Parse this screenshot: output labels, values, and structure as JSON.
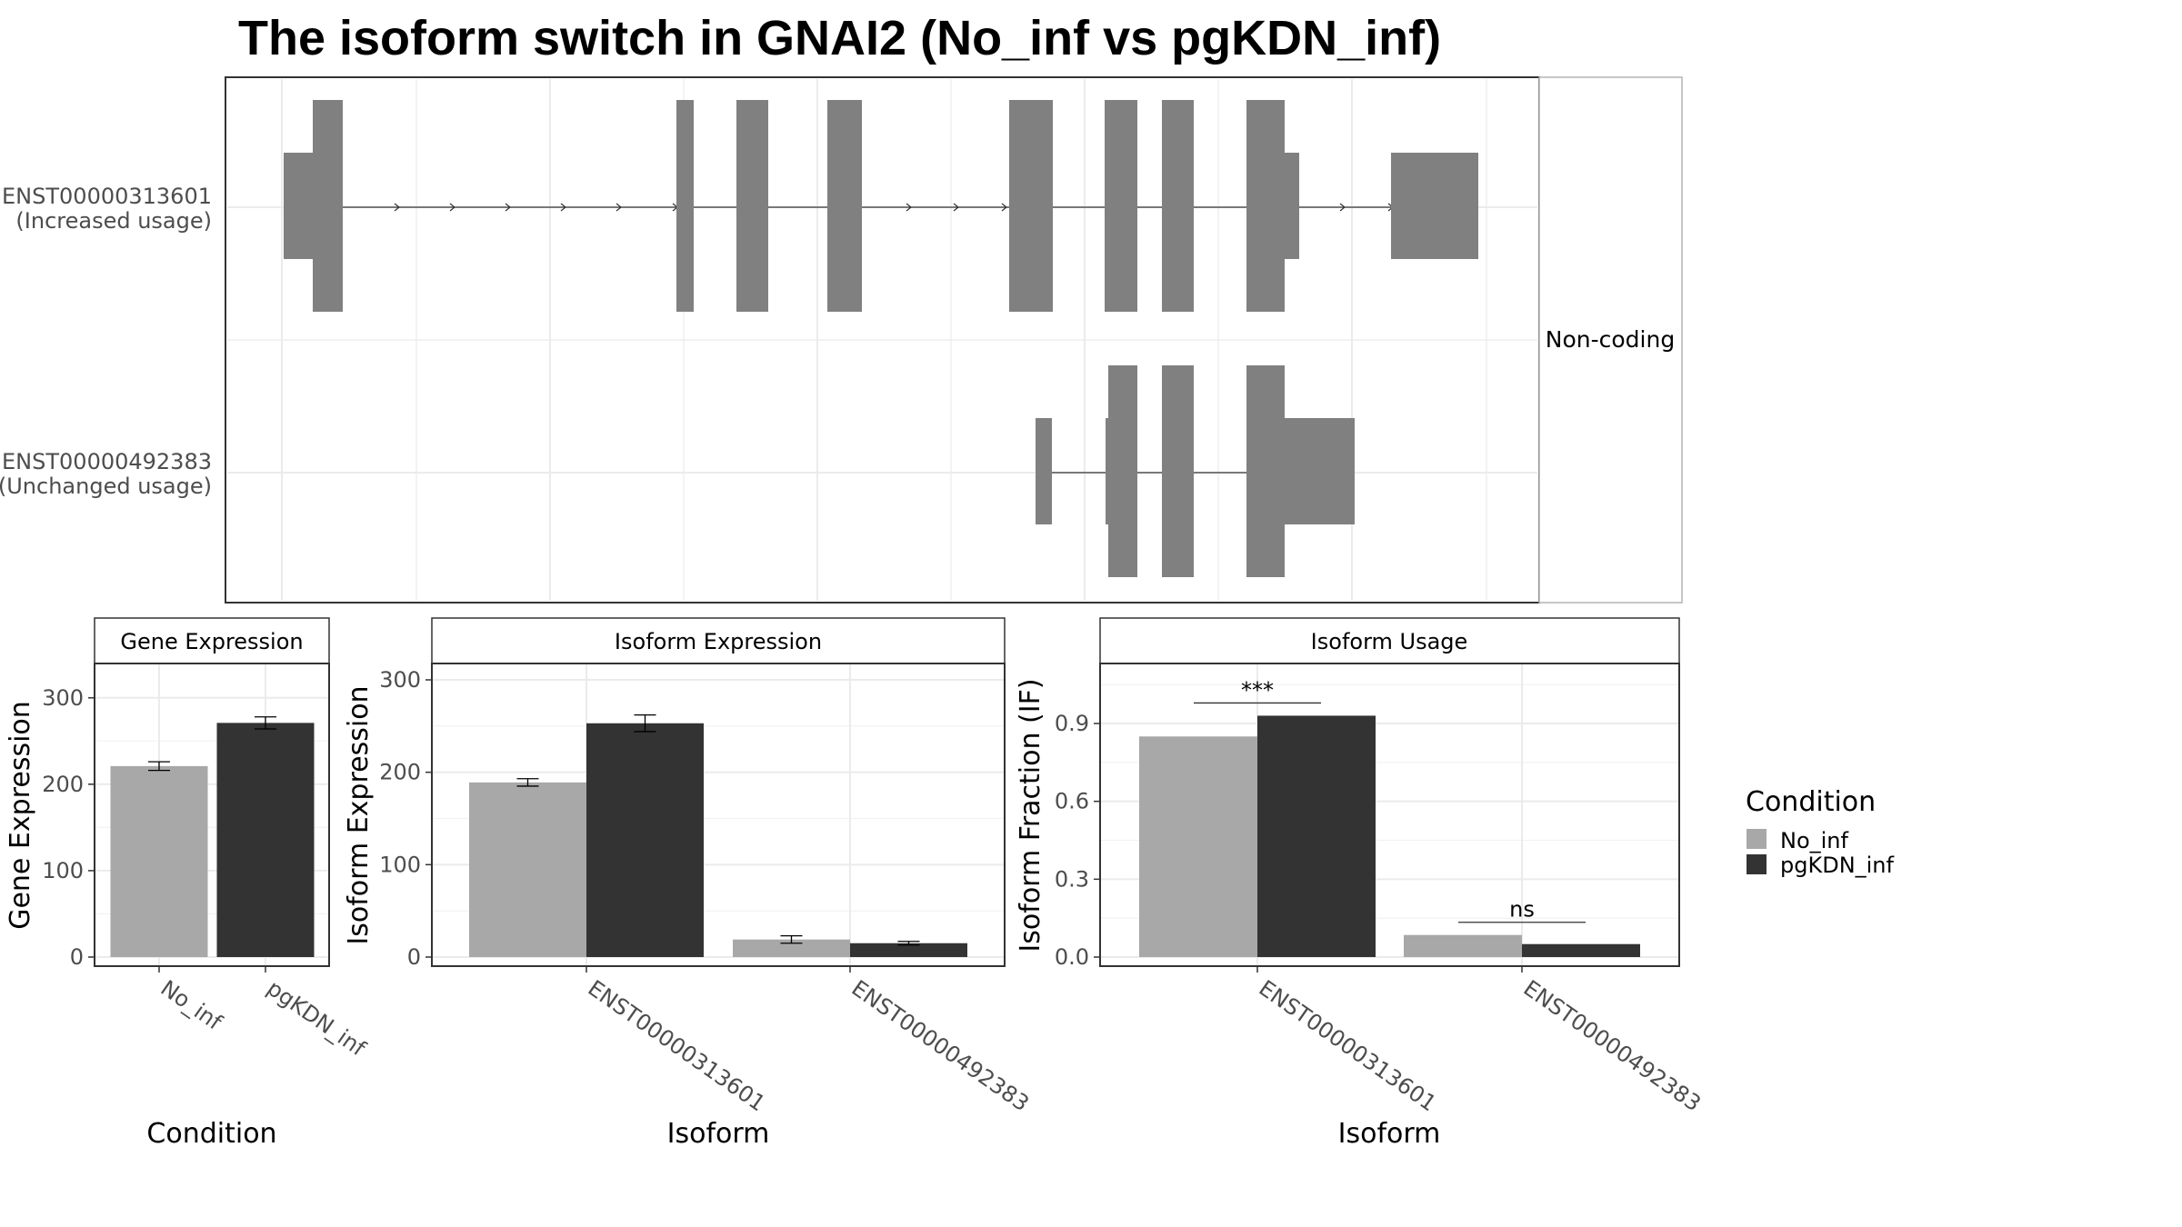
{
  "title": "The isoform switch in GNAI2 (No_inf vs pgKDN_inf)",
  "colors": {
    "No_inf": "#a8a8a8",
    "pgKDN_inf": "#333333",
    "exon": "#808080"
  },
  "gene_structure": {
    "strip_label": "Non-coding",
    "isoforms": [
      {
        "name": "ENST00000313601",
        "usage": "(Increased usage)"
      },
      {
        "name": "ENST00000492383",
        "usage": "(Unchanged usage)"
      }
    ]
  },
  "chart_data": [
    {
      "type": "bar",
      "title": "Gene Expression",
      "xlabel": "Condition",
      "ylabel": "Gene Expression",
      "categories": [
        "No_inf",
        "pgKDN_inf"
      ],
      "values": [
        221,
        271
      ],
      "errors": [
        5,
        7
      ],
      "yticks": [
        0,
        100,
        200,
        300
      ],
      "ylim": [
        0,
        345
      ]
    },
    {
      "type": "bar",
      "title": "Isoform Expression",
      "xlabel": "Isoform",
      "ylabel": "Isoform Expression",
      "categories": [
        "ENST00000313601",
        "ENST00000492383"
      ],
      "series": [
        {
          "name": "No_inf",
          "values": [
            189,
            19
          ],
          "errors": [
            4,
            4
          ]
        },
        {
          "name": "pgKDN_inf",
          "values": [
            253,
            15
          ],
          "errors": [
            9,
            2
          ]
        }
      ],
      "yticks": [
        0,
        100,
        200,
        300
      ],
      "ylim": [
        0,
        316
      ]
    },
    {
      "type": "bar",
      "title": "Isoform Usage",
      "xlabel": "Isoform",
      "ylabel": "Isoform Fraction (IF)",
      "categories": [
        "ENST00000313601",
        "ENST00000492383"
      ],
      "series": [
        {
          "name": "No_inf",
          "values": [
            0.85,
            0.085
          ]
        },
        {
          "name": "pgKDN_inf",
          "values": [
            0.93,
            0.05
          ]
        }
      ],
      "significance": [
        "***",
        "ns"
      ],
      "yticks": [
        "0.0",
        "0.3",
        "0.6",
        "0.9"
      ],
      "ylim": [
        0,
        1.13
      ]
    }
  ],
  "legend": {
    "title": "Condition",
    "items": [
      {
        "label": "No_inf",
        "color": "#a8a8a8"
      },
      {
        "label": "pgKDN_inf",
        "color": "#333333"
      }
    ]
  }
}
